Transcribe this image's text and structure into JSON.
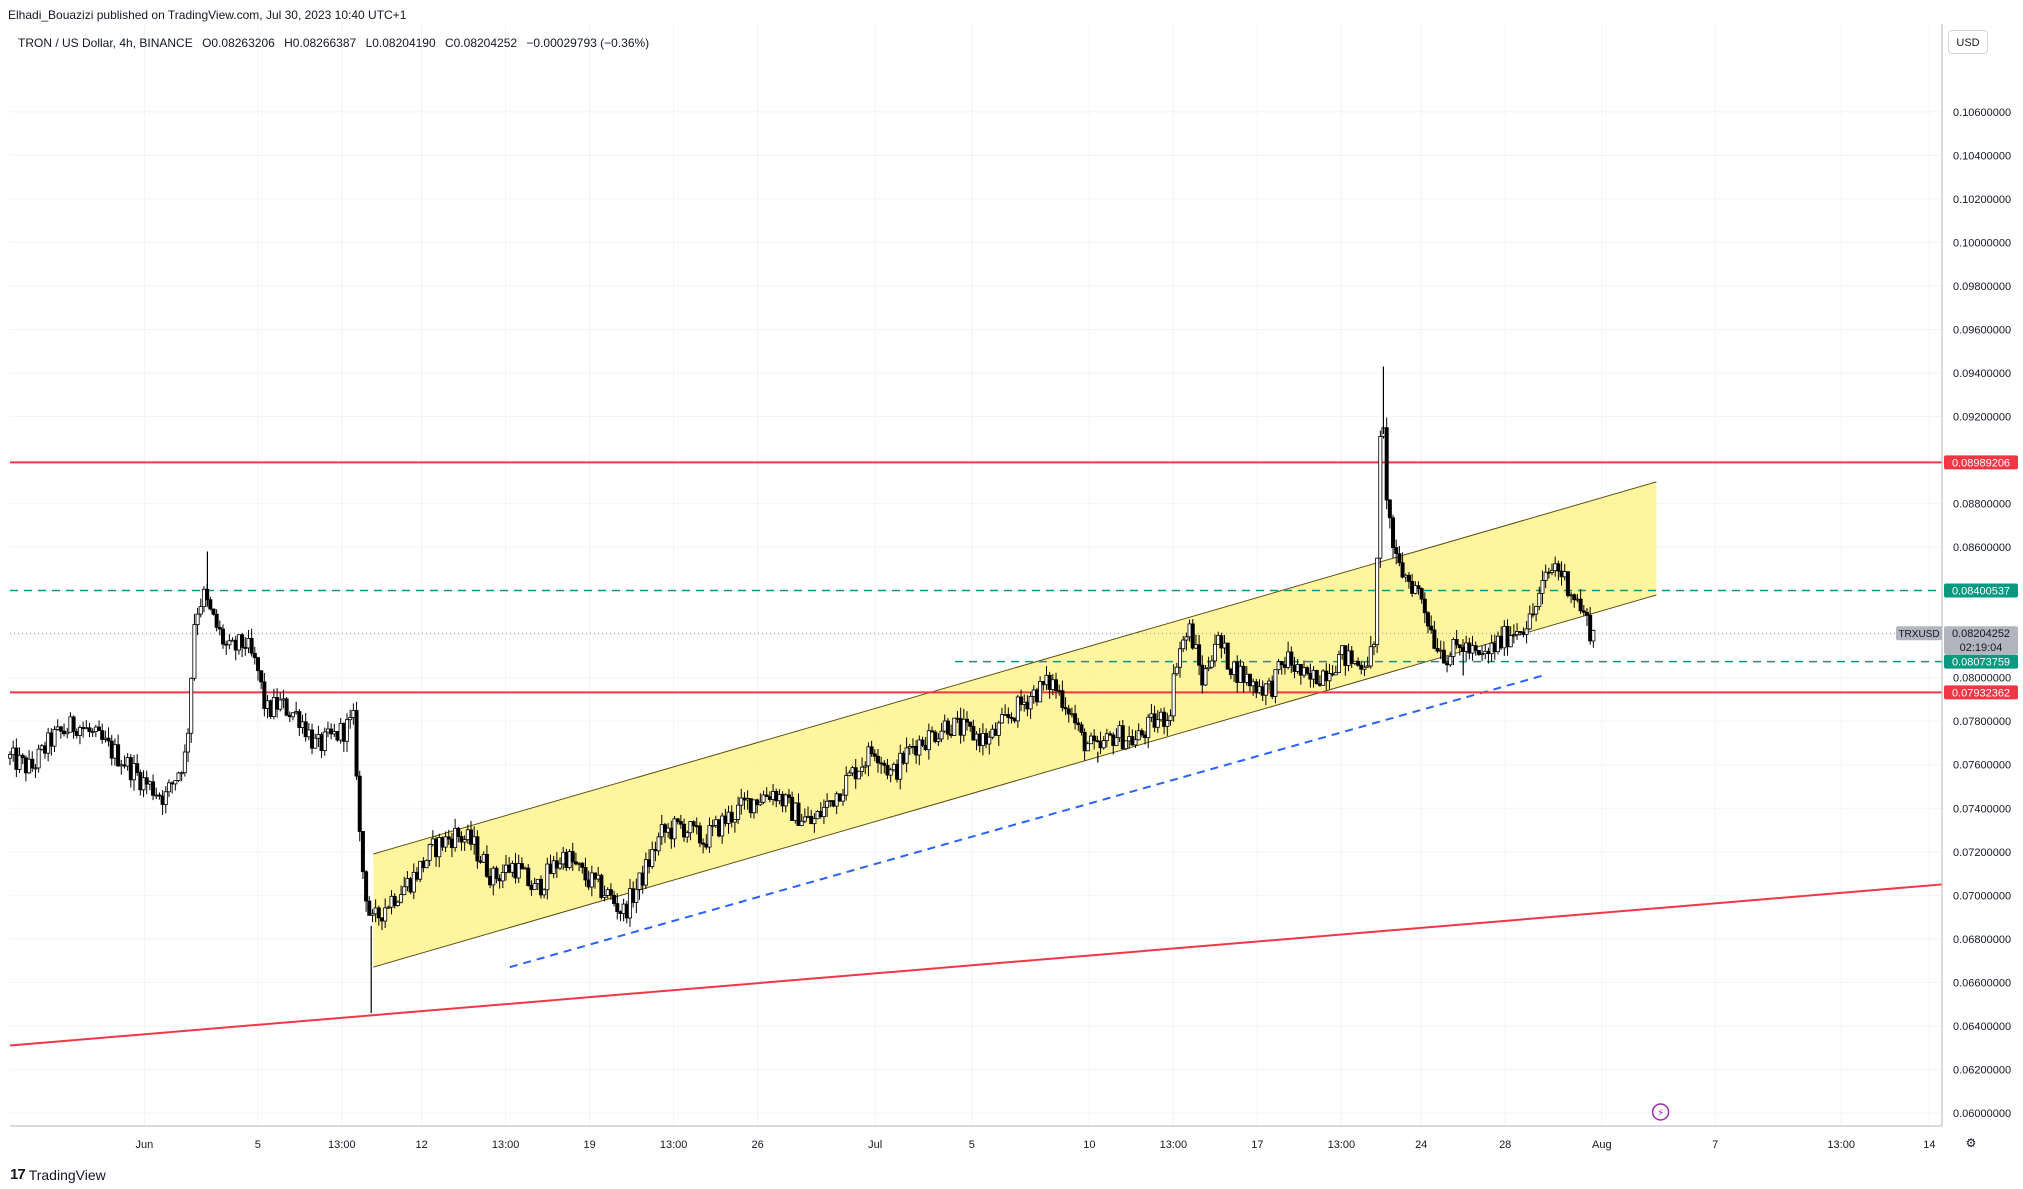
{
  "header": {
    "published_line": "Elhadi_Bouazizi published on TradingView.com, Jul 30, 2023 10:40 UTC+1"
  },
  "symbol_info": {
    "name": "TRON / US Dollar, 4h, BINANCE",
    "open": "O0.08263206",
    "high": "H0.08266387",
    "low": "L0.08204190",
    "close": "C0.08204252",
    "change": "−0.00029793 (−0.36%)"
  },
  "currency_button": "USD",
  "footer": {
    "logo_text": "TradingView",
    "logo_mark": "17"
  },
  "icons": {
    "lightning": "lightning-icon",
    "chart_settings": "chart-settings-icon"
  },
  "chart_data": {
    "type": "candlestick",
    "title": "TRON / US Dollar, 4h, BINANCE",
    "y_axis": {
      "ylim": [
        0.0594,
        0.1082
      ],
      "tick_values": [
        0.06,
        0.062,
        0.064,
        0.066,
        0.068,
        0.07,
        0.072,
        0.074,
        0.076,
        0.078,
        0.08,
        0.082,
        0.084,
        0.086,
        0.088,
        0.09,
        0.092,
        0.094,
        0.096,
        0.098,
        0.1,
        0.102,
        0.104,
        0.106
      ],
      "tick_labels": [
        "0.06000000",
        "0.06200000",
        "0.06400000",
        "0.06600000",
        "0.06800000",
        "0.07000000",
        "0.07200000",
        "0.07400000",
        "0.07600000",
        "0.07800000",
        "0.08000000",
        "0.08200000",
        "0.08400000",
        "0.08600000",
        "0.08800000",
        "0.09000000",
        "0.09200000",
        "0.09400000",
        "0.09600000",
        "0.09800000",
        "0.10000000",
        "0.10200000",
        "0.10400000",
        "0.10600000"
      ]
    },
    "x_axis": {
      "xlim": [
        0,
        46
      ],
      "tick_positions": [
        3.2,
        5.9,
        7.9,
        9.8,
        11.8,
        13.8,
        15.8,
        17.8,
        20.6,
        22.9,
        25.7,
        27.7,
        29.7,
        31.7,
        33.6,
        35.6,
        37.9,
        40.6,
        43.6,
        45.7
      ],
      "tick_labels": [
        "Jun",
        "5",
        "13:00",
        "12",
        "13:00",
        "19",
        "13:00",
        "26",
        "Jul",
        "5",
        "10",
        "13:00",
        "17",
        "13:00",
        "24",
        "28",
        "Aug",
        "7",
        "13:00",
        "14"
      ]
    },
    "price_path": [
      [
        0,
        0.0763
      ],
      [
        0.5,
        0.0758
      ],
      [
        1,
        0.0772
      ],
      [
        1.6,
        0.0779
      ],
      [
        2.2,
        0.077
      ],
      [
        2.7,
        0.0762
      ],
      [
        3.2,
        0.0752
      ],
      [
        3.7,
        0.0745
      ],
      [
        4.2,
        0.0765
      ],
      [
        4.4,
        0.0829
      ],
      [
        4.6,
        0.0838
      ],
      [
        4.8,
        0.0828
      ],
      [
        5.2,
        0.0812
      ],
      [
        5.6,
        0.0816
      ],
      [
        5.9,
        0.0803
      ],
      [
        6.1,
        0.0784
      ],
      [
        6.4,
        0.0788
      ],
      [
        6.9,
        0.0782
      ],
      [
        7.3,
        0.0768
      ],
      [
        7.8,
        0.0774
      ],
      [
        8.2,
        0.078
      ],
      [
        8.35,
        0.0718
      ],
      [
        8.6,
        0.0686
      ],
      [
        9,
        0.0697
      ],
      [
        9.6,
        0.0708
      ],
      [
        10.1,
        0.0722
      ],
      [
        10.6,
        0.0728
      ],
      [
        11,
        0.0724
      ],
      [
        11.5,
        0.0708
      ],
      [
        12,
        0.0714
      ],
      [
        12.5,
        0.0702
      ],
      [
        13.2,
        0.0719
      ],
      [
        13.7,
        0.0708
      ],
      [
        14.2,
        0.0701
      ],
      [
        14.6,
        0.0692
      ],
      [
        15,
        0.0706
      ],
      [
        15.5,
        0.0728
      ],
      [
        16,
        0.0732
      ],
      [
        16.5,
        0.0725
      ],
      [
        17,
        0.0734
      ],
      [
        17.6,
        0.0743
      ],
      [
        18.2,
        0.0748
      ],
      [
        18.6,
        0.0739
      ],
      [
        19.1,
        0.0733
      ],
      [
        19.6,
        0.0745
      ],
      [
        20.1,
        0.0757
      ],
      [
        20.6,
        0.0768
      ],
      [
        21,
        0.0755
      ],
      [
        21.5,
        0.0769
      ],
      [
        21.9,
        0.0773
      ],
      [
        22.3,
        0.0779
      ],
      [
        22.8,
        0.0775
      ],
      [
        23.3,
        0.0771
      ],
      [
        23.8,
        0.0782
      ],
      [
        24.3,
        0.0792
      ],
      [
        24.8,
        0.0798
      ],
      [
        25.2,
        0.0787
      ],
      [
        25.5,
        0.0772
      ],
      [
        25.9,
        0.0766
      ],
      [
        26.3,
        0.0774
      ],
      [
        26.8,
        0.0771
      ],
      [
        27.2,
        0.0779
      ],
      [
        27.6,
        0.0783
      ],
      [
        27.8,
        0.0812
      ],
      [
        28.1,
        0.0822
      ],
      [
        28.4,
        0.0798
      ],
      [
        28.7,
        0.0818
      ],
      [
        29.1,
        0.0805
      ],
      [
        29.6,
        0.0797
      ],
      [
        30,
        0.0795
      ],
      [
        30.4,
        0.0809
      ],
      [
        30.9,
        0.0798
      ],
      [
        31.3,
        0.0803
      ],
      [
        31.7,
        0.081
      ],
      [
        32.1,
        0.0806
      ],
      [
        32.5,
        0.0812
      ],
      [
        32.6,
        0.0904
      ],
      [
        32.7,
        0.0912
      ],
      [
        32.8,
        0.0878
      ],
      [
        33,
        0.0852
      ],
      [
        33.3,
        0.0845
      ],
      [
        33.6,
        0.0838
      ],
      [
        33.9,
        0.0818
      ],
      [
        34.2,
        0.081
      ],
      [
        34.6,
        0.0815
      ],
      [
        35,
        0.0808
      ],
      [
        35.4,
        0.0815
      ],
      [
        35.8,
        0.0822
      ],
      [
        36.2,
        0.0826
      ],
      [
        36.6,
        0.0847
      ],
      [
        36.8,
        0.0852
      ],
      [
        37.1,
        0.0843
      ],
      [
        37.4,
        0.0832
      ],
      [
        37.6,
        0.0823
      ],
      [
        37.7,
        0.082
      ]
    ],
    "spikes": [
      {
        "x": 4.7,
        "high": 0.0858
      },
      {
        "x": 8.6,
        "low": 0.0646
      },
      {
        "x": 32.7,
        "high": 0.0943
      },
      {
        "x": 25.9,
        "low": 0.0761
      },
      {
        "x": 34.6,
        "low": 0.0801
      }
    ],
    "channel": {
      "color": "#fff176",
      "lower_line": [
        [
          8.65,
          0.0667
        ],
        [
          39.2,
          0.0838
        ]
      ],
      "upper_line": [
        [
          8.65,
          0.0719
        ],
        [
          39.2,
          0.089
        ]
      ]
    },
    "lines": [
      {
        "name": "support-line",
        "type": "solid",
        "color": "#f23645",
        "points": [
          [
            0,
            0.0631
          ],
          [
            46,
            0.0705
          ]
        ]
      },
      {
        "name": "lower-dashed-trendline",
        "type": "dashed",
        "color": "#2962ff",
        "points": [
          [
            11.9,
            0.0667
          ],
          [
            36.5,
            0.0801
          ]
        ]
      },
      {
        "name": "resistance-0.0899",
        "type": "horizontal",
        "color": "#f23645",
        "value": 0.08989206
      },
      {
        "name": "level-0.0793",
        "type": "horizontal",
        "color": "#f23645",
        "value": 0.07932362
      },
      {
        "name": "dashed-0.0840",
        "type": "horizontal-dashed",
        "color": "#089981",
        "value": 0.08400537
      },
      {
        "name": "dashed-0.0807",
        "type": "horizontal-dashed",
        "color": "#089981",
        "value": 0.08073759,
        "x_start": 22.5
      },
      {
        "name": "current-price-dotted",
        "type": "horizontal-dotted",
        "color": "#9598a1",
        "value": 0.08204252
      }
    ],
    "price_labels": [
      {
        "text": "0.08989206",
        "value": 0.08989206,
        "bg": "#f23645",
        "color": "#ffffff"
      },
      {
        "text": "0.08400537",
        "value": 0.08400537,
        "bg": "#089981",
        "color": "#ffffff"
      },
      {
        "text": "0.08204252",
        "value": 0.08204252,
        "bg": "#b2b5be",
        "color": "#131722",
        "sub": "02:19:04",
        "symbol_tag": "TRXUSD"
      },
      {
        "text": "0.08073759",
        "value": 0.08073759,
        "bg": "#089981",
        "color": "#ffffff"
      },
      {
        "text": "0.07932362",
        "value": 0.07932362,
        "bg": "#f23645",
        "color": "#ffffff"
      }
    ],
    "grid": true,
    "legend": "none"
  }
}
